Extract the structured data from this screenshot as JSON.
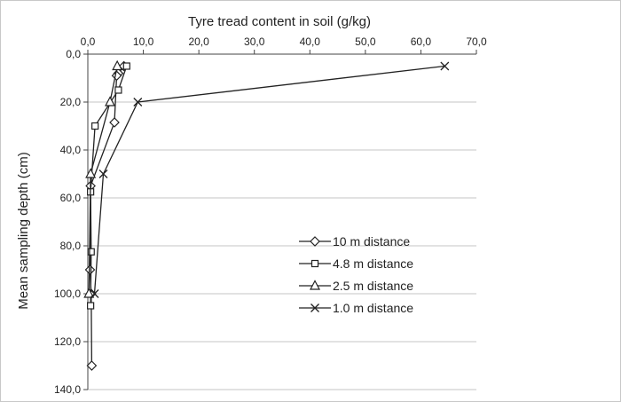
{
  "chart_data": {
    "type": "scatter",
    "title": "",
    "xlabel": "Tyre tread content in soil (g/kg)",
    "ylabel": "Mean sampling depth (cm)",
    "x_axis_position": "top",
    "y_axis_inverted": true,
    "xlim": [
      0,
      70
    ],
    "ylim": [
      0,
      140
    ],
    "x_ticks": [
      "0,0",
      "10,0",
      "20,0",
      "30,0",
      "40,0",
      "50,0",
      "60,0",
      "70,0"
    ],
    "y_ticks": [
      "0,0",
      "20,0",
      "40,0",
      "60,0",
      "80,0",
      "100,0",
      "120,0",
      "140,0"
    ],
    "grid": "horizontal",
    "legend_position": "right-middle",
    "series": [
      {
        "name": "10 m distance",
        "marker": "diamond",
        "points": [
          {
            "x": 6.5,
            "y": 5
          },
          {
            "x": 5.5,
            "y": 8
          },
          {
            "x": 5.2,
            "y": 9
          },
          {
            "x": 4.8,
            "y": 28.5
          },
          {
            "x": 0.5,
            "y": 55
          },
          {
            "x": 0.4,
            "y": 90
          },
          {
            "x": 0.6,
            "y": 100
          },
          {
            "x": 0.7,
            "y": 130
          }
        ]
      },
      {
        "name": "4.8  m distance",
        "marker": "square",
        "points": [
          {
            "x": 7.0,
            "y": 5
          },
          {
            "x": 5.5,
            "y": 15
          },
          {
            "x": 1.3,
            "y": 30
          },
          {
            "x": 0.5,
            "y": 57.5
          },
          {
            "x": 0.6,
            "y": 82.5
          },
          {
            "x": 0.5,
            "y": 105
          }
        ]
      },
      {
        "name": "2.5 m distance",
        "marker": "triangle",
        "points": [
          {
            "x": 5.3,
            "y": 5
          },
          {
            "x": 4.0,
            "y": 20
          },
          {
            "x": 0.5,
            "y": 50
          },
          {
            "x": 0.2,
            "y": 100
          }
        ]
      },
      {
        "name": "1.0 m distance",
        "marker": "cross",
        "points": [
          {
            "x": 64.3,
            "y": 5
          },
          {
            "x": 9.0,
            "y": 20
          },
          {
            "x": 2.8,
            "y": 50
          },
          {
            "x": 1.2,
            "y": 100
          }
        ]
      }
    ]
  }
}
